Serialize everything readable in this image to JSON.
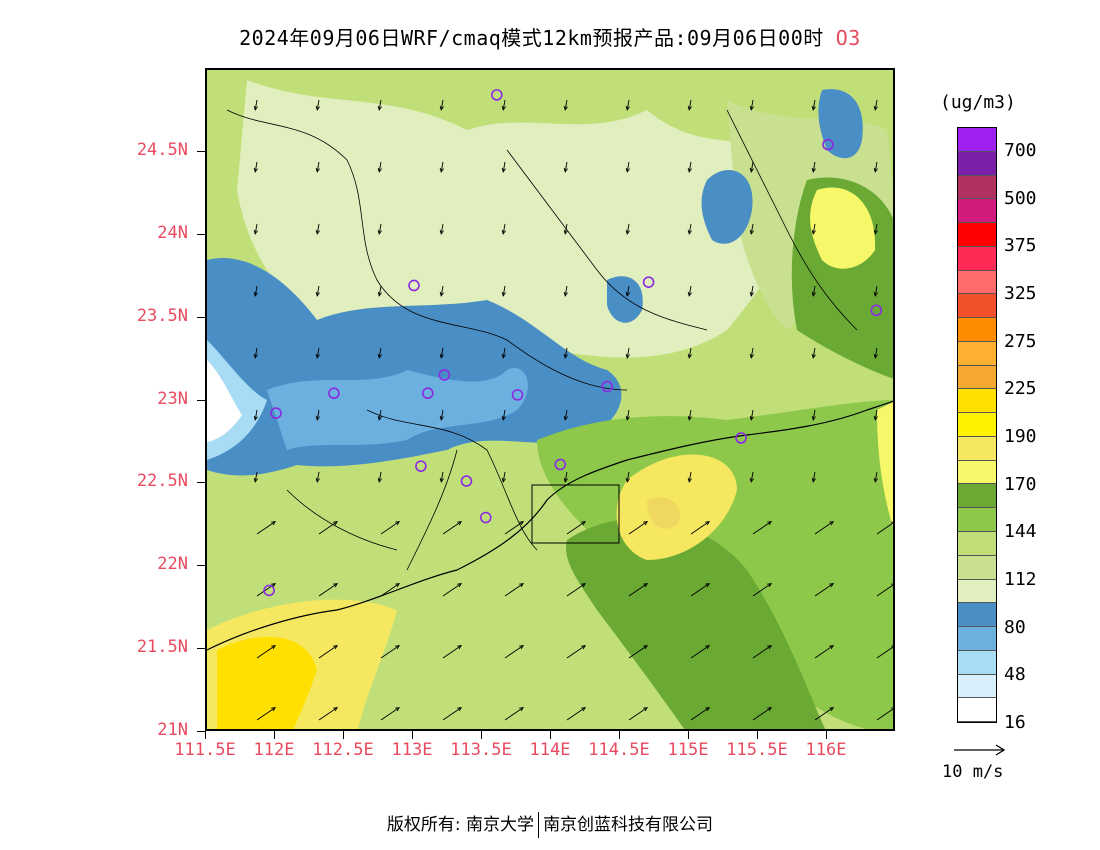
{
  "title": {
    "main": "2024年09月06日WRF/cmaq模式12km预报产品:09月06日00时",
    "species": "O3"
  },
  "axes": {
    "lat_labels": [
      "24.5N",
      "24N",
      "23.5N",
      "23N",
      "22.5N",
      "22N",
      "21.5N",
      "21N"
    ],
    "lon_labels": [
      "111.5E",
      "112E",
      "112.5E",
      "113E",
      "113.5E",
      "114E",
      "114.5E",
      "115E",
      "115.5E",
      "116E"
    ],
    "lat_range": [
      21,
      25
    ],
    "lon_range": [
      111.5,
      116.5
    ]
  },
  "legend": {
    "units": "(ug/m3)",
    "labels": [
      "700",
      "500",
      "375",
      "325",
      "275",
      "225",
      "190",
      "170",
      "144",
      "112",
      "80",
      "48",
      "16"
    ],
    "colors": [
      "#a020f0",
      "#7b1ea8",
      "#b0305f",
      "#d01a7c",
      "#ff0000",
      "#ff2a55",
      "#ff6a6a",
      "#f0502a",
      "#ff8c00",
      "#ffb030",
      "#f5a830",
      "#ffe000",
      "#fff200",
      "#f5e860",
      "#f6f86a",
      "#6aaa34",
      "#8dc84a",
      "#c1df78",
      "#c8e090",
      "#e1eebd",
      "#4a8ec6",
      "#6cb0e0",
      "#a8dcf4",
      "#d8f0fc",
      "#ffffff"
    ]
  },
  "wind_reference": {
    "label": "10 m/s"
  },
  "cities": [
    {
      "lon": 113.6,
      "lat": 24.85
    },
    {
      "lon": 116.0,
      "lat": 24.55
    },
    {
      "lon": 113.0,
      "lat": 23.7
    },
    {
      "lon": 114.7,
      "lat": 23.72
    },
    {
      "lon": 116.35,
      "lat": 23.55
    },
    {
      "lon": 112.42,
      "lat": 23.05
    },
    {
      "lon": 112.0,
      "lat": 22.93
    },
    {
      "lon": 113.1,
      "lat": 23.05
    },
    {
      "lon": 113.22,
      "lat": 23.16
    },
    {
      "lon": 113.75,
      "lat": 23.04
    },
    {
      "lon": 114.4,
      "lat": 23.09
    },
    {
      "lon": 115.37,
      "lat": 22.78
    },
    {
      "lon": 113.05,
      "lat": 22.61
    },
    {
      "lon": 113.38,
      "lat": 22.52
    },
    {
      "lon": 114.06,
      "lat": 22.62
    },
    {
      "lon": 113.52,
      "lat": 22.3
    },
    {
      "lon": 111.95,
      "lat": 21.86
    }
  ],
  "copyright": {
    "text_left": "版权所有: 南京大学",
    "text_right": "南京创蓝科技有限公司"
  }
}
